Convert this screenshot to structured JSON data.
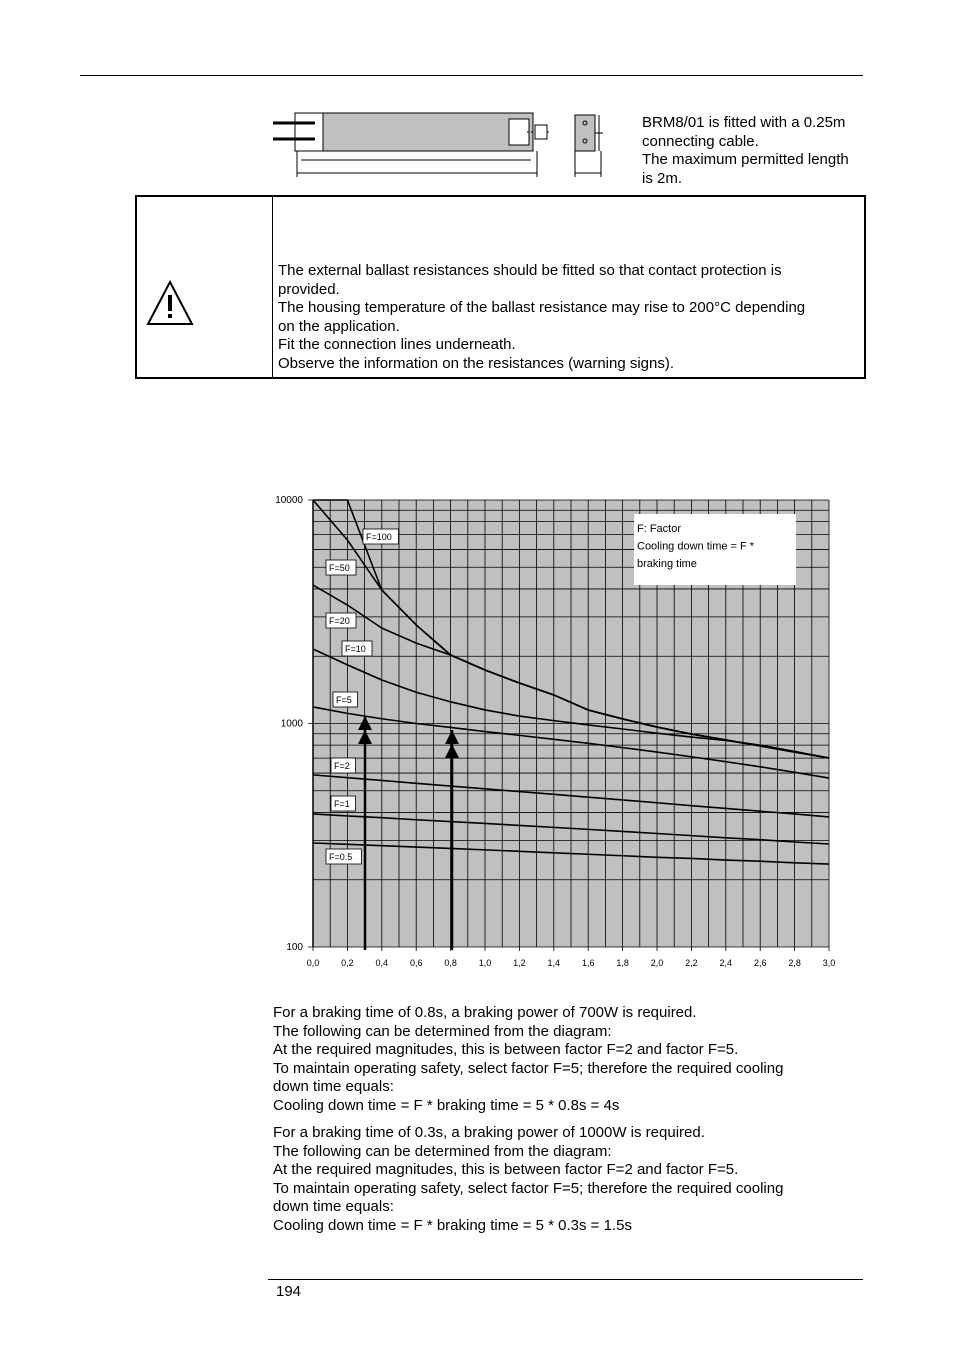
{
  "caption": [
    "BRM8/01 is fitted with a 0.25m",
    "connecting cable.",
    "The maximum permitted length",
    "is 2m."
  ],
  "warning": [
    "The external ballast resistances should be fitted so that contact protection is",
    "provided.",
    "The housing temperature of the ballast resistance may rise to 200°C depending",
    "on the application.",
    "Fit the connection lines underneath.",
    "Observe the information on the resistances (warning signs)."
  ],
  "chart": {
    "type": "line",
    "log_y": true,
    "grid": true,
    "fill": "#c0c0c0",
    "color": "#000000",
    "ylim": [
      100,
      10000
    ],
    "yticks": [
      100,
      1000,
      10000
    ],
    "xlim": [
      0,
      3
    ],
    "xticks": [
      {
        "value": 0,
        "label": "0,0"
      },
      {
        "value": 0.2,
        "label": "0,2"
      },
      {
        "value": 0.4,
        "label": "0,4"
      },
      {
        "value": 0.6,
        "label": "0,6"
      },
      {
        "value": 0.8,
        "label": "0,8"
      },
      {
        "value": 1,
        "label": "1,0"
      },
      {
        "value": 1.2,
        "label": "1,2"
      },
      {
        "value": 1.4,
        "label": "1,4"
      },
      {
        "value": 1.6,
        "label": "1,6"
      },
      {
        "value": 1.8,
        "label": "1,8"
      },
      {
        "value": 2,
        "label": "2,0"
      },
      {
        "value": 2.2,
        "label": "2,2"
      },
      {
        "value": 2.4,
        "label": "2,4"
      },
      {
        "value": 2.6,
        "label": "2,6"
      },
      {
        "value": 2.8,
        "label": "2,8"
      },
      {
        "value": 3,
        "label": "3,0"
      }
    ],
    "x": [
      0,
      0.2,
      0.4,
      0.6,
      0.8,
      1,
      1.2,
      1.4,
      1.6,
      1.8,
      2,
      2.2,
      2.4,
      2.6,
      2.8,
      3
    ],
    "series": [
      {
        "name": "F=100",
        "values": [
          10000,
          10000,
          3955,
          2760,
          2025,
          1735,
          1517,
          1342,
          1149,
          1048,
          964,
          897,
          844,
          793,
          745,
          701
        ]
      },
      {
        "name": "F=50",
        "values": [
          10000,
          6620,
          3955,
          2760,
          2025,
          1735,
          1517,
          1342,
          1149,
          1048,
          964,
          897,
          844,
          793,
          745,
          701
        ]
      },
      {
        "name": "F=20",
        "values": [
          4165,
          3390,
          2673,
          2290,
          2025,
          1735,
          1517,
          1342,
          1149,
          1048,
          964,
          897,
          844,
          793,
          745,
          701
        ]
      },
      {
        "name": "F=10",
        "values": [
          2154,
          1830,
          1566,
          1380,
          1250,
          1150,
          1080,
          1030,
          985,
          945,
          905,
          870,
          840,
          800,
          750,
          701
        ]
      },
      {
        "name": "F=5",
        "values": [
          1186,
          1110,
          1050,
          1000,
          960,
          920,
          885,
          850,
          815,
          780,
          745,
          710,
          675,
          640,
          605,
          570
        ]
      },
      {
        "name": "F=2",
        "values": [
          589,
          572,
          556,
          540,
          525,
          510,
          496,
          482,
          468,
          455,
          442,
          429,
          417,
          405,
          394,
          382
        ]
      },
      {
        "name": "F=1",
        "values": [
          394,
          386,
          379,
          371,
          364,
          357,
          350,
          343,
          336,
          329,
          322,
          315,
          308,
          302,
          295,
          289
        ]
      },
      {
        "name": "F=0.5",
        "values": [
          292,
          288,
          284,
          280,
          276,
          272,
          268,
          264,
          260,
          256,
          252,
          249,
          245,
          242,
          238,
          235
        ]
      }
    ],
    "note": [
      "F: Factor",
      "Cooling down time = F  *",
      "braking time"
    ]
  },
  "example1": [
    "For a braking time of 0.8s, a braking power of 700W is required.",
    "The following can be determined from the diagram:",
    "At the required magnitudes, this is between factor F=2 and factor F=5.",
    "To maintain operating safety, select factor F=5; therefore the required cooling",
    "down time equals:",
    "Cooling down time = F * braking time = 5 * 0.8s = 4s"
  ],
  "example2": [
    "For a braking time of 0.3s, a braking power of 1000W is required.",
    "The following can be determined from the diagram:",
    "At the required magnitudes, this is between factor F=2 and factor F=5.",
    "To maintain operating safety, select factor F=5; therefore the required cooling",
    "down time equals:",
    "Cooling down time = F * braking time = 5 * 0.3s = 1.5s"
  ],
  "page_number": "194"
}
